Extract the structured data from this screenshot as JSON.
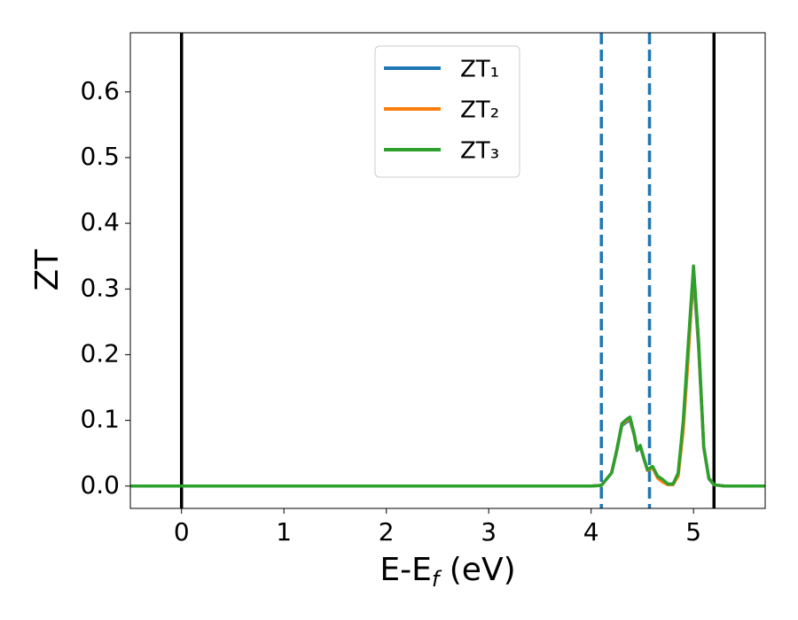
{
  "chart_data": {
    "type": "line",
    "x_label": [
      "E-E",
      "f",
      " (eV)"
    ],
    "y_label": "ZT",
    "xlim": [
      -0.5,
      5.7
    ],
    "ylim": [
      -0.034,
      0.69
    ],
    "xticks": [
      0,
      1,
      2,
      3,
      4,
      5
    ],
    "yticks": [
      {
        "value": 0,
        "label": "0.0"
      },
      0.1,
      0.2,
      0.3,
      0.4,
      0.5,
      0.6
    ],
    "legend": "upper center",
    "x": [
      -0.5,
      4.0,
      4.1,
      4.2,
      4.25,
      4.3,
      4.35,
      4.38,
      4.42,
      4.45,
      4.48,
      4.52,
      4.55,
      4.6,
      4.65,
      4.7,
      4.75,
      4.8,
      4.85,
      4.9,
      4.95,
      5.0,
      5.05,
      5.1,
      5.15,
      5.2,
      5.3,
      5.7
    ],
    "series": [
      {
        "name": "ZT₁",
        "color": "#1f77b4",
        "values": [
          0,
          0,
          0.001,
          0.02,
          0.053,
          0.092,
          0.098,
          0.1,
          0.078,
          0.054,
          0.06,
          0.039,
          0.024,
          0.029,
          0.014,
          0.009,
          0.003,
          0.003,
          0.018,
          0.095,
          0.21,
          0.32,
          0.21,
          0.058,
          0.011,
          0.002,
          0,
          0
        ]
      },
      {
        "name": "ZT₂",
        "color": "#ff7f0e",
        "values": [
          0,
          0,
          0.001,
          0.02,
          0.054,
          0.094,
          0.1,
          0.103,
          0.079,
          0.055,
          0.061,
          0.04,
          0.024,
          0.028,
          0.012,
          0.006,
          0.002,
          0.002,
          0.015,
          0.085,
          0.2,
          0.33,
          0.215,
          0.059,
          0.012,
          0.002,
          0,
          0
        ]
      },
      {
        "name": "ZT₃",
        "color": "#2ca02c",
        "values": [
          0,
          0,
          0.001,
          0.02,
          0.055,
          0.095,
          0.102,
          0.105,
          0.08,
          0.055,
          0.062,
          0.04,
          0.025,
          0.03,
          0.015,
          0.01,
          0.003,
          0.003,
          0.02,
          0.1,
          0.22,
          0.335,
          0.22,
          0.06,
          0.012,
          0.002,
          0,
          0
        ]
      }
    ],
    "vlines": [
      {
        "x": 0,
        "color": "#000000",
        "dashed": false
      },
      {
        "x": 4.1,
        "color": "#1f77b4",
        "dashed": true
      },
      {
        "x": 4.57,
        "color": "#1f77b4",
        "dashed": true
      },
      {
        "x": 5.2,
        "color": "#000000",
        "dashed": false
      }
    ]
  }
}
